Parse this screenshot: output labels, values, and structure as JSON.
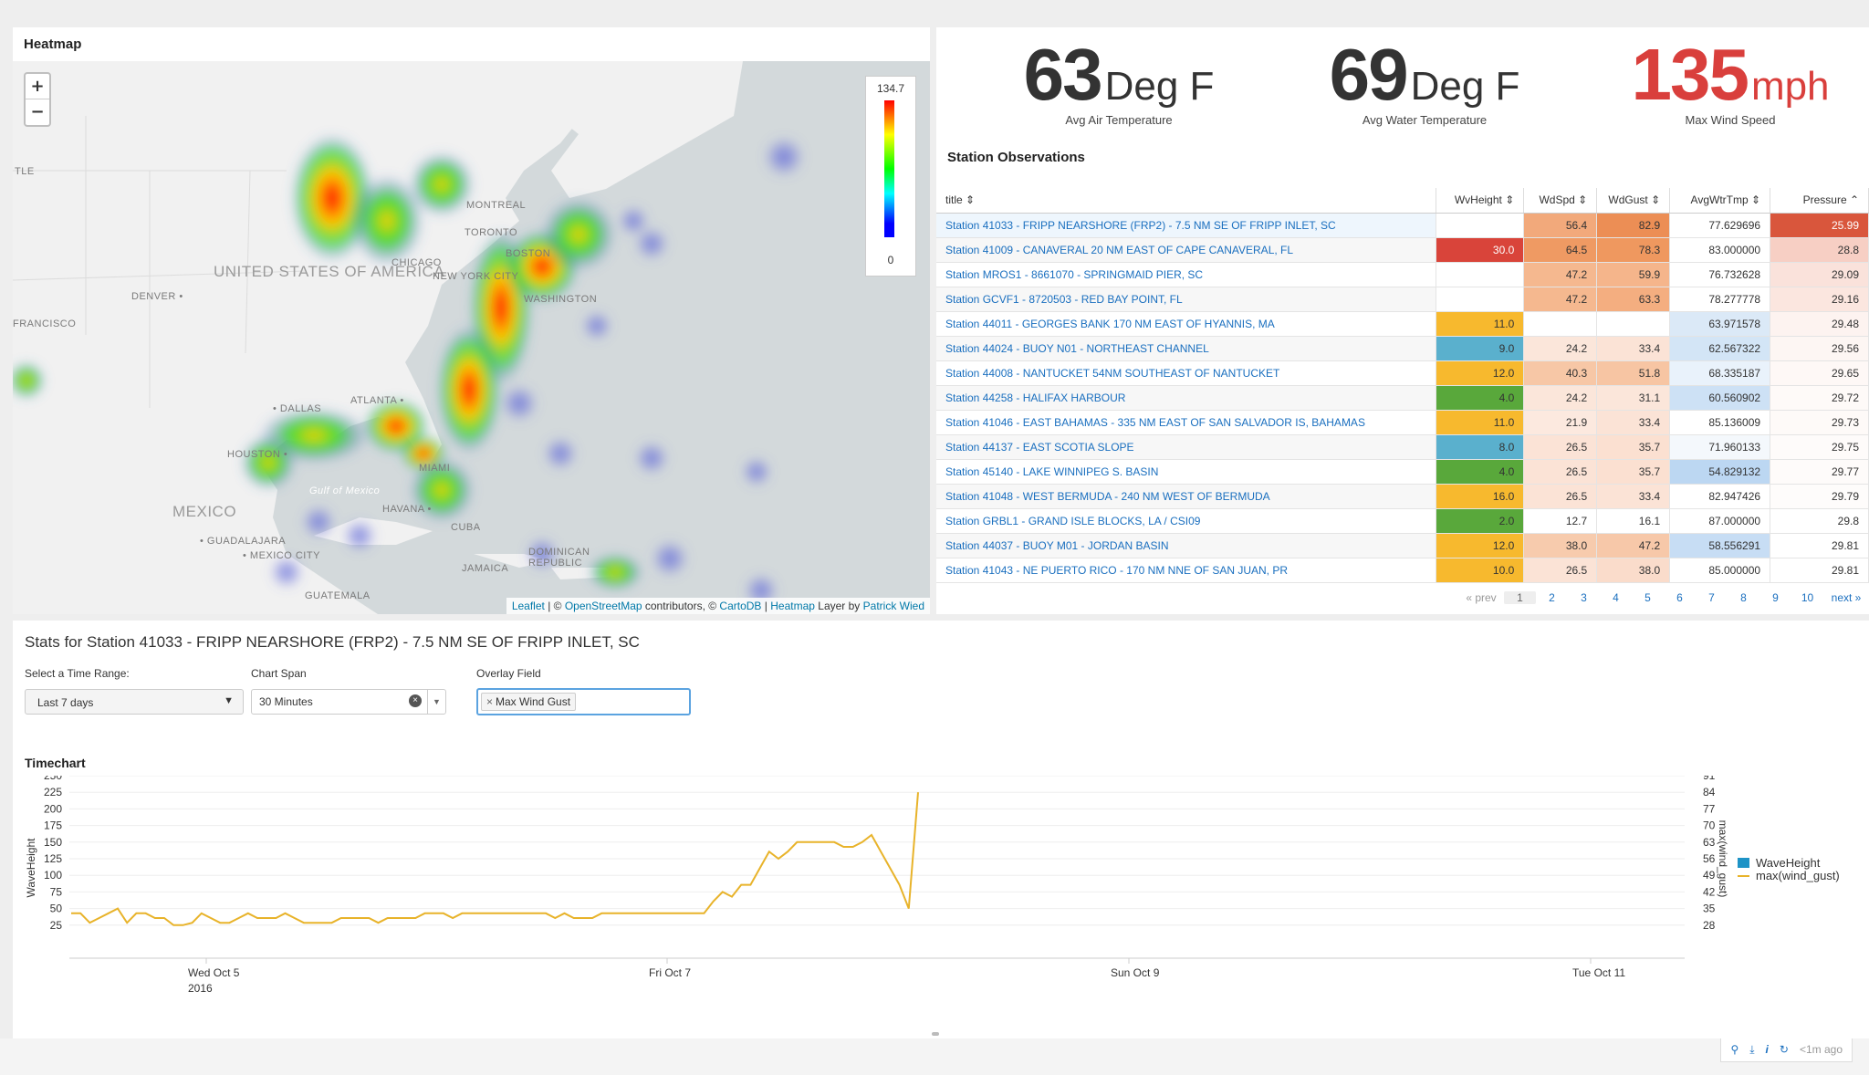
{
  "heatmap": {
    "title": "Heatmap",
    "zoom_in": "+",
    "zoom_out": "−",
    "legend_max": "134.7",
    "legend_min": "0",
    "labels": [
      "UNITED STATES OF AMERICA",
      "DENVER •",
      "• DALLAS",
      "HOUSTON •",
      "ATLANTA •",
      "MEXICO",
      "Gulf of Mexico",
      "• GUADALAJARA",
      "• MEXICO CITY",
      "HAVANA •",
      "CUBA",
      "MIAMI",
      "JAMAICA",
      "DOMINICAN REPUBLIC",
      "GUATEMALA",
      "NEW YORK CITY",
      "TORONTO",
      "MONTREAL",
      "BOSTON",
      "WASHINGTON",
      "CHICAGO",
      "FRANCISCO",
      "TLE"
    ],
    "attribution": {
      "leaflet": "Leaflet",
      "sep1": " | © ",
      "osm": "OpenStreetMap",
      "mid": " contributors, © ",
      "carto": "CartoDB",
      "sep2": " | ",
      "heatmap": "Heatmap",
      "layer": " Layer by ",
      "author": "Patrick Wied"
    }
  },
  "kpis": [
    {
      "value": "63",
      "unit": "Deg F",
      "label": "Avg Air Temperature"
    },
    {
      "value": "69",
      "unit": "Deg F",
      "label": "Avg Water Temperature"
    },
    {
      "value": "135",
      "unit": "mph",
      "label": "Max Wind Speed"
    }
  ],
  "observations": {
    "title": "Station Observations",
    "columns": [
      "title ⇕",
      "WvHeight ⇕",
      "WdSpd ⇕",
      "WdGust ⇕",
      "AvgWtrTmp ⇕",
      "Pressure ⌃"
    ],
    "rows": [
      {
        "title": "Station 41033 - FRIPP NEARSHORE (FRP2) - 7.5 NM SE OF FRIPP INLET, SC",
        "wv": "",
        "wd": "56.4",
        "wg": "82.9",
        "wt": "77.629696",
        "p": "25.99",
        "c": [
          "#fff",
          "#f2a97b",
          "#ec8e55",
          "#fff",
          "#d9563c"
        ]
      },
      {
        "title": "Station 41009 - CANAVERAL 20 NM EAST OF CAPE CANAVERAL, FL",
        "wv": "30.0",
        "wd": "64.5",
        "wg": "78.3",
        "wt": "83.000000",
        "p": "28.8",
        "c": [
          "#d9443a",
          "#ef9a63",
          "#ef985f",
          "#fff",
          "#f7cfc4"
        ]
      },
      {
        "title": "Station MROS1 - 8661070 - SPRINGMAID PIER, SC",
        "wv": "",
        "wd": "47.2",
        "wg": "59.9",
        "wt": "76.732628",
        "p": "29.09",
        "c": [
          "#fff",
          "#f5b88f",
          "#f5b58b",
          "#fff",
          "#fae2db"
        ]
      },
      {
        "title": "Station GCVF1 - 8720503 - RED BAY POINT, FL",
        "wv": "",
        "wd": "47.2",
        "wg": "63.3",
        "wt": "78.277778",
        "p": "29.16",
        "c": [
          "#fff",
          "#f5b88f",
          "#f4ae80",
          "#fff",
          "#fbe6df"
        ]
      },
      {
        "title": "Station 44011 - GEORGES BANK 170 NM EAST OF HYANNIS, MA",
        "wv": "11.0",
        "wd": "",
        "wg": "",
        "wt": "63.971578",
        "p": "29.48",
        "c": [
          "#f7b92e",
          "#fff",
          "#fff",
          "#dbe9f7",
          "#fdf3f0"
        ]
      },
      {
        "title": "Station 44024 - BUOY N01 - NORTHEAST CHANNEL",
        "wv": "9.0",
        "wd": "24.2",
        "wg": "33.4",
        "wt": "62.567322",
        "p": "29.56",
        "c": [
          "#5ab0cd",
          "#fbe6da",
          "#fbe3d6",
          "#d3e5f6",
          "#fdf6f3"
        ]
      },
      {
        "title": "Station 44008 - NANTUCKET 54NM SOUTHEAST OF NANTUCKET",
        "wv": "12.0",
        "wd": "40.3",
        "wg": "51.8",
        "wt": "68.335187",
        "p": "29.65",
        "c": [
          "#f7b92e",
          "#f7c7a6",
          "#f7c5a3",
          "#e9f2fb",
          "#fef8f6"
        ]
      },
      {
        "title": "Station 44258 - HALIFAX HARBOUR",
        "wv": "4.0",
        "wd": "24.2",
        "wg": "31.1",
        "wt": "60.560902",
        "p": "29.72",
        "c": [
          "#59a83b",
          "#fbe6da",
          "#fbe6da",
          "#cde1f5",
          "#fefaf8"
        ]
      },
      {
        "title": "Station 41046 - EAST BAHAMAS - 335 NM EAST OF SAN SALVADOR IS, BAHAMAS",
        "wv": "11.0",
        "wd": "21.9",
        "wg": "33.4",
        "wt": "85.136009",
        "p": "29.73",
        "c": [
          "#f7b92e",
          "#fce9df",
          "#fbe3d6",
          "#fff",
          "#fefaf8"
        ]
      },
      {
        "title": "Station 44137 - EAST SCOTIA SLOPE",
        "wv": "8.0",
        "wd": "26.5",
        "wg": "35.7",
        "wt": "71.960133",
        "p": "29.75",
        "c": [
          "#5ab0cd",
          "#fbe3d6",
          "#fbe0d1",
          "#f4f8fc",
          "#fefbfa"
        ]
      },
      {
        "title": "Station 45140 - LAKE WINNIPEG S. BASIN",
        "wv": "4.0",
        "wd": "26.5",
        "wg": "35.7",
        "wt": "54.829132",
        "p": "29.77",
        "c": [
          "#59a83b",
          "#fbe3d6",
          "#fbe0d1",
          "#bcd7f2",
          "#fefbfa"
        ]
      },
      {
        "title": "Station 41048 - WEST BERMUDA - 240 NM WEST OF BERMUDA",
        "wv": "16.0",
        "wd": "26.5",
        "wg": "33.4",
        "wt": "82.947426",
        "p": "29.79",
        "c": [
          "#f7b92e",
          "#fbe3d6",
          "#fbe3d6",
          "#fff",
          "#fefcfb"
        ]
      },
      {
        "title": "Station GRBL1 - GRAND ISLE BLOCKS, LA / CSI09",
        "wv": "2.0",
        "wd": "12.7",
        "wg": "16.1",
        "wt": "87.000000",
        "p": "29.8",
        "c": [
          "#59a83b",
          "#fff",
          "#fff",
          "#fff",
          "#fff"
        ]
      },
      {
        "title": "Station 44037 - BUOY M01 - JORDAN BASIN",
        "wv": "12.0",
        "wd": "38.0",
        "wg": "47.2",
        "wt": "58.556291",
        "p": "29.81",
        "c": [
          "#f7b92e",
          "#f7cbad",
          "#f7c8a9",
          "#c7ddf4",
          "#fff"
        ]
      },
      {
        "title": "Station 41043 - NE PUERTO RICO - 170 NM NNE OF SAN JUAN, PR",
        "wv": "10.0",
        "wd": "26.5",
        "wg": "38.0",
        "wt": "85.000000",
        "p": "29.81",
        "c": [
          "#f7b92e",
          "#fbe3d6",
          "#fadccb",
          "#fff",
          "#fff"
        ]
      }
    ],
    "pager": [
      "« prev",
      "1",
      "2",
      "3",
      "4",
      "5",
      "6",
      "7",
      "8",
      "9",
      "10",
      "next »"
    ]
  },
  "station_stats": {
    "title": "Stats for Station 41033 - FRIPP NEARSHORE (FRP2) - 7.5 NM SE OF FRIPP INLET, SC",
    "time_range_label": "Select a Time Range:",
    "time_range_value": "Last 7 days",
    "chart_span_label": "Chart Span",
    "chart_span_value": "30 Minutes",
    "overlay_label": "Overlay Field",
    "overlay_chip": "Max Wind Gust",
    "timechart_title": "Timechart"
  },
  "toolbar": {
    "ago": "<1m ago"
  },
  "chart_data": {
    "type": "line",
    "title": "Timechart",
    "ylabel": "WaveHeight",
    "y2label": "max(wind_gust)",
    "yticks": [
      "250",
      "225",
      "200",
      "175",
      "150",
      "125",
      "100",
      "75",
      "50",
      "25"
    ],
    "y2ticks": [
      "91",
      "84",
      "77",
      "70",
      "63",
      "56",
      "49",
      "42",
      "35",
      "28"
    ],
    "xticks": [
      "Wed Oct 5\n2016",
      "Fri Oct 7",
      "Sun Oct 9",
      "Tue Oct 11"
    ],
    "ylim": [
      0,
      250
    ],
    "y2lim": [
      21,
      91
    ],
    "legend": [
      "WaveHeight",
      "max(wind_gust)"
    ],
    "legend_position": "right",
    "series": [
      {
        "name": "max(wind_gust)",
        "color": "#e8b32a",
        "x_days_offset_labels": "Oct 4 to Oct 8",
        "values": [
          33,
          33,
          29,
          31,
          33,
          35,
          29,
          33,
          33,
          31,
          31,
          28,
          28,
          29,
          33,
          31,
          29,
          29,
          31,
          33,
          31,
          31,
          31,
          33,
          31,
          29,
          29,
          29,
          29,
          31,
          31,
          31,
          31,
          29,
          31,
          31,
          31,
          31,
          33,
          33,
          33,
          31,
          33,
          33,
          33,
          33,
          33,
          33,
          33,
          33,
          33,
          33,
          31,
          33,
          31,
          31,
          31,
          33,
          33,
          33,
          33,
          33,
          33,
          33,
          33,
          33,
          33,
          33,
          33,
          38,
          42,
          40,
          45,
          45,
          52,
          59,
          56,
          59,
          63,
          63,
          63,
          63,
          63,
          61,
          61,
          63,
          66,
          59,
          52,
          45,
          35,
          84
        ]
      }
    ]
  }
}
